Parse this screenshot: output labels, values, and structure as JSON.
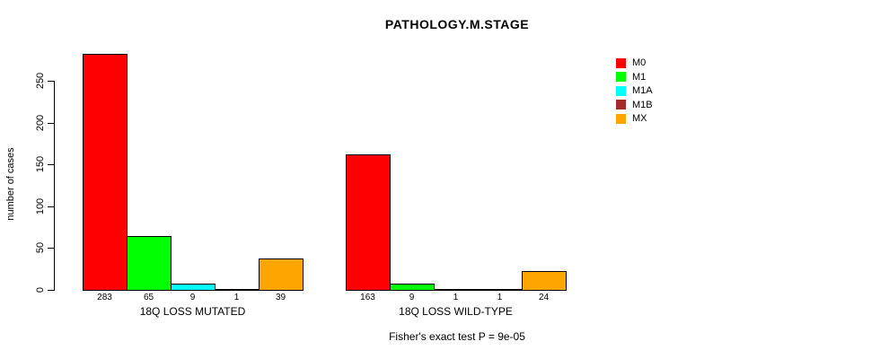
{
  "chart_data": {
    "type": "bar",
    "title": "PATHOLOGY.M.STAGE",
    "ylabel": "number of cases",
    "xlabel": "",
    "yticks": [
      0,
      50,
      100,
      150,
      200,
      250
    ],
    "ylim": [
      0,
      250
    ],
    "grid": false,
    "annotation": "Fisher's exact test P = 9e-05",
    "series_names": [
      "M0",
      "M1",
      "M1A",
      "M1B",
      "MX"
    ],
    "legend": {
      "position": "right",
      "entries": [
        {
          "label": "M0",
          "color": "#FF0000"
        },
        {
          "label": "M1",
          "color": "#00FF00"
        },
        {
          "label": "M1A",
          "color": "#00FFFF"
        },
        {
          "label": "M1B",
          "color": "#A52A2A"
        },
        {
          "label": "MX",
          "color": "#FFA500"
        }
      ]
    },
    "groups": [
      {
        "label": "18Q LOSS MUTATED",
        "values": [
          283,
          65,
          9,
          1,
          39
        ]
      },
      {
        "label": "18Q LOSS WILD-TYPE",
        "values": [
          163,
          9,
          1,
          1,
          24
        ]
      }
    ]
  },
  "colors": {
    "background": "#FFFFFF",
    "axis": "#000000",
    "text": "#000000",
    "bar_border": "#000000"
  }
}
